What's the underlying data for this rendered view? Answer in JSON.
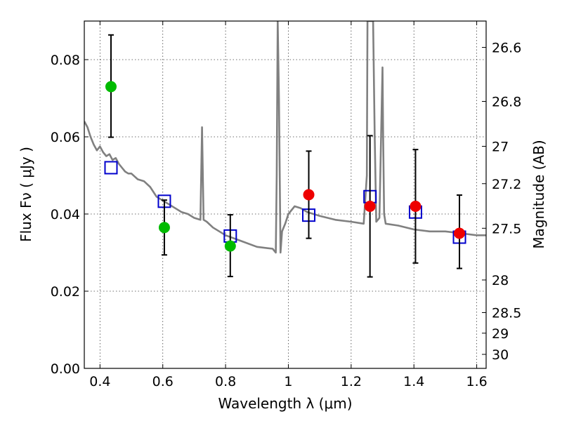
{
  "chart_data": {
    "type": "scatter",
    "title": "",
    "xlabel": "Wavelength  λ (μm)",
    "ylabel": "Flux  Fν  ( μJy )",
    "y2label": "Magnitude (AB)",
    "xlim": [
      0.35,
      1.63
    ],
    "ylim": [
      0.0,
      0.09
    ],
    "grid": true,
    "x_ticks": [
      0.4,
      0.6,
      0.8,
      1.0,
      1.2,
      1.4,
      1.6
    ],
    "x_tick_labels": [
      "0.4",
      "0.6",
      "0.8",
      "1",
      "1.2",
      "1.4",
      "1.6"
    ],
    "y_ticks": [
      0.0,
      0.02,
      0.04,
      0.06,
      0.08
    ],
    "y_tick_labels": [
      "0.00",
      "0.02",
      "0.04",
      "0.06",
      "0.08"
    ],
    "y2_ticks": [
      26.6,
      26.8,
      27.0,
      27.2,
      27.5,
      28.0,
      28.5,
      29.0,
      30.0
    ],
    "y2_tick_labels": [
      "26.6",
      "26.8",
      "27",
      "27.2",
      "27.5",
      "28",
      "28.5",
      "29",
      "30"
    ],
    "series": [
      {
        "name": "",
        "kind": "line",
        "color": "#808080",
        "x": [
          0.35,
          0.36,
          0.37,
          0.38,
          0.39,
          0.4,
          0.41,
          0.42,
          0.43,
          0.44,
          0.45,
          0.46,
          0.47,
          0.48,
          0.49,
          0.5,
          0.52,
          0.54,
          0.56,
          0.58,
          0.6,
          0.62,
          0.64,
          0.66,
          0.68,
          0.7,
          0.72,
          0.725,
          0.73,
          0.74,
          0.76,
          0.78,
          0.8,
          0.85,
          0.9,
          0.95,
          0.96,
          0.963,
          0.966,
          0.97,
          0.975,
          0.98,
          0.99,
          1.0,
          1.02,
          1.04,
          1.06,
          1.1,
          1.15,
          1.2,
          1.24,
          1.25,
          1.252,
          1.256,
          1.26,
          1.27,
          1.275,
          1.28,
          1.29,
          1.3,
          1.302,
          1.305,
          1.31,
          1.35,
          1.4,
          1.45,
          1.5,
          1.55,
          1.6,
          1.63
        ],
        "y": [
          0.064,
          0.0625,
          0.06,
          0.058,
          0.0565,
          0.0575,
          0.056,
          0.055,
          0.0555,
          0.054,
          0.0545,
          0.053,
          0.052,
          0.051,
          0.0505,
          0.0505,
          0.049,
          0.0485,
          0.047,
          0.0445,
          0.0435,
          0.0425,
          0.0415,
          0.0405,
          0.04,
          0.039,
          0.0385,
          0.0625,
          0.0385,
          0.038,
          0.0365,
          0.0355,
          0.0345,
          0.033,
          0.0315,
          0.031,
          0.03,
          0.05,
          0.09,
          0.07,
          0.03,
          0.0355,
          0.0375,
          0.04,
          0.042,
          0.0415,
          0.0405,
          0.0395,
          0.0385,
          0.038,
          0.0375,
          0.05,
          0.09,
          0.09,
          0.09,
          0.09,
          0.06,
          0.038,
          0.039,
          0.078,
          0.06,
          0.04,
          0.0375,
          0.037,
          0.036,
          0.0355,
          0.0355,
          0.035,
          0.0345,
          0.0345
        ]
      },
      {
        "name": "",
        "kind": "model-points",
        "color": "#0000cc",
        "x": [
          0.435,
          0.605,
          0.815,
          1.065,
          1.26,
          1.405,
          1.545
        ],
        "y": [
          0.052,
          0.0433,
          0.0343,
          0.0397,
          0.0445,
          0.0405,
          0.034
        ]
      },
      {
        "name": "",
        "kind": "observed",
        "color": "#00bb00",
        "x": [
          0.435,
          0.605,
          0.815
        ],
        "y": [
          0.073,
          0.0365,
          0.0317
        ],
        "err_low": [
          0.0131,
          0.0071,
          0.0079
        ],
        "err_high": [
          0.0134,
          0.0071,
          0.0081
        ]
      },
      {
        "name": "",
        "kind": "observed",
        "color": "#ee0000",
        "x": [
          1.065,
          1.26,
          1.405,
          1.545
        ],
        "y": [
          0.045,
          0.042,
          0.042,
          0.035
        ],
        "err_low": [
          0.0113,
          0.0183,
          0.0147,
          0.0091
        ],
        "err_high": [
          0.0113,
          0.0183,
          0.0147,
          0.0099
        ]
      }
    ]
  }
}
